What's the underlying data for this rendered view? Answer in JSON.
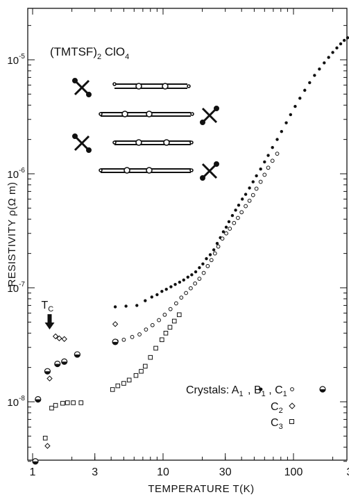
{
  "chart_data": {
    "type": "scatter",
    "title": "(TMTSF)",
    "title_sub": "2",
    "title_rest": " ClO",
    "title_sub2": "4",
    "xlabel": "TEMPERATURE  T(K)",
    "ylabel": "RESISTIVITY  ρ(Ω m)",
    "x_scale": "log",
    "y_scale": "log",
    "xlim": [
      1,
      320
    ],
    "ylim": [
      2.8e-09,
      3e-05
    ],
    "x_ticks": [
      {
        "v": 1,
        "label": "1"
      },
      {
        "v": 3,
        "label": "3"
      },
      {
        "v": 10,
        "label": "10"
      },
      {
        "v": 30,
        "label": "30"
      },
      {
        "v": 100,
        "label": "100"
      },
      {
        "v": 300,
        "label": "300"
      }
    ],
    "y_ticks": [
      {
        "v": 1e-08,
        "base": "10",
        "exp": "-8"
      },
      {
        "v": 1e-07,
        "base": "10",
        "exp": "-7"
      },
      {
        "v": 1e-06,
        "base": "10",
        "exp": "-6"
      },
      {
        "v": 1e-05,
        "base": "10",
        "exp": "-5"
      }
    ],
    "tc_label": "T",
    "tc_sub": "C",
    "tc_x": 1.35,
    "legend": {
      "line1": "Crystals: A",
      "a_sub": "1",
      "b_text": ", B",
      "b_sub": "1",
      "c_text": ", C",
      "c_sub": "1",
      "line2": "C",
      "line2_sub": "2",
      "line3": "C",
      "line3_sub": "3"
    },
    "series": [
      {
        "marker": "filled-circle",
        "points": [
          [
            4.3,
            6.8e-08
          ],
          [
            5.2,
            6.9e-08
          ],
          [
            6.3,
            7e-08
          ],
          [
            7.3,
            7.7e-08
          ],
          [
            8.2,
            8.3e-08
          ],
          [
            9.0,
            8.7e-08
          ],
          [
            9.8,
            9.3e-08
          ],
          [
            10.6,
            9.7e-08
          ],
          [
            11.5,
            1.02e-07
          ],
          [
            12.4,
            1.07e-07
          ],
          [
            13.4,
            1.12e-07
          ],
          [
            14.4,
            1.17e-07
          ],
          [
            15.5,
            1.24e-07
          ],
          [
            16.6,
            1.3e-07
          ],
          [
            17.8,
            1.38e-07
          ],
          [
            19.0,
            1.5e-07
          ],
          [
            20.2,
            1.62e-07
          ],
          [
            21.5,
            1.8e-07
          ],
          [
            23.0,
            1.95e-07
          ],
          [
            24.5,
            2.15e-07
          ],
          [
            26.0,
            2.45e-07
          ],
          [
            27.5,
            2.75e-07
          ],
          [
            29.0,
            3.1e-07
          ],
          [
            30.5,
            3.4e-07
          ],
          [
            32.0,
            3.8e-07
          ],
          [
            34.0,
            4.3e-07
          ],
          [
            36.0,
            4.8e-07
          ],
          [
            38.0,
            5.3e-07
          ],
          [
            40.5,
            6e-07
          ],
          [
            43.0,
            6.6e-07
          ],
          [
            46.0,
            7.5e-07
          ],
          [
            49.0,
            8.5e-07
          ],
          [
            52.0,
            9.6e-07
          ],
          [
            56.0,
            1.1e-06
          ],
          [
            60.0,
            1.27e-06
          ],
          [
            64.0,
            1.45e-06
          ],
          [
            69.0,
            1.7e-06
          ],
          [
            75.0,
            2e-06
          ],
          [
            81.0,
            2.35e-06
          ],
          [
            88.0,
            2.8e-06
          ],
          [
            95.0,
            3.3e-06
          ],
          [
            103.0,
            3.9e-06
          ],
          [
            112.0,
            4.6e-06
          ],
          [
            122.0,
            5.4e-06
          ],
          [
            133.0,
            6.3e-06
          ],
          [
            145.0,
            7.3e-06
          ],
          [
            158.0,
            8.3e-06
          ],
          [
            172.0,
            9.4e-06
          ],
          [
            186.0,
            1.05e-05
          ],
          [
            200.0,
            1.16e-05
          ],
          [
            215.0,
            1.27e-05
          ],
          [
            230.0,
            1.38e-05
          ],
          [
            245.0,
            1.48e-05
          ],
          [
            260.0,
            1.56e-05
          ],
          [
            275.0,
            1.64e-05
          ],
          [
            290.0,
            1.7e-05
          ]
        ]
      },
      {
        "marker": "open-circle",
        "points": [
          [
            4.4,
            3.4e-08
          ],
          [
            5.0,
            3.5e-08
          ],
          [
            5.8,
            3.7e-08
          ],
          [
            6.6,
            3.9e-08
          ],
          [
            7.4,
            4.3e-08
          ],
          [
            8.3,
            4.7e-08
          ],
          [
            9.3,
            5.2e-08
          ],
          [
            10.3,
            5.8e-08
          ],
          [
            11.4,
            6.5e-08
          ],
          [
            12.6,
            7.3e-08
          ],
          [
            13.8,
            8.2e-08
          ],
          [
            15.0,
            9e-08
          ],
          [
            16.3,
            9.9e-08
          ],
          [
            17.6,
            1.09e-07
          ],
          [
            19.0,
            1.2e-07
          ],
          [
            20.5,
            1.35e-07
          ],
          [
            22.0,
            1.55e-07
          ],
          [
            23.5,
            1.75e-07
          ],
          [
            25.0,
            2e-07
          ],
          [
            26.5,
            2.3e-07
          ],
          [
            28.5,
            2.7e-07
          ],
          [
            30.5,
            3e-07
          ],
          [
            32.5,
            3.3e-07
          ],
          [
            35.0,
            3.7e-07
          ],
          [
            37.5,
            4.1e-07
          ],
          [
            40.0,
            4.6e-07
          ],
          [
            43.0,
            5.2e-07
          ],
          [
            46.0,
            5.8e-07
          ],
          [
            49.0,
            6.5e-07
          ],
          [
            52.0,
            7.4e-07
          ],
          [
            56.0,
            8.5e-07
          ],
          [
            60.0,
            9.8e-07
          ],
          [
            64.0,
            1.13e-06
          ],
          [
            69.0,
            1.3e-06
          ],
          [
            75.0,
            1.5e-06
          ]
        ]
      },
      {
        "marker": "half-circle",
        "points": [
          [
            1.05,
            3e-09
          ],
          [
            1.1,
            1.05e-08
          ],
          [
            1.3,
            1.85e-08
          ],
          [
            1.55,
            2.15e-08
          ],
          [
            1.75,
            2.25e-08
          ],
          [
            2.2,
            2.6e-08
          ],
          [
            4.3,
            3.35e-08
          ]
        ]
      },
      {
        "marker": "open-diamond",
        "points": [
          [
            1.3,
            4.1e-09
          ],
          [
            1.35,
            1.6e-08
          ],
          [
            1.5,
            3.75e-08
          ],
          [
            1.6,
            3.6e-08
          ],
          [
            1.75,
            3.55e-08
          ],
          [
            4.3,
            4.8e-08
          ]
        ]
      },
      {
        "marker": "open-square",
        "points": [
          [
            1.25,
            4.8e-09
          ],
          [
            1.4,
            8.8e-09
          ],
          [
            1.5,
            9.3e-09
          ],
          [
            1.7,
            9.7e-09
          ],
          [
            1.85,
            9.8e-09
          ],
          [
            2.05,
            9.8e-09
          ],
          [
            2.35,
            9.8e-09
          ],
          [
            4.1,
            1.28e-08
          ],
          [
            4.5,
            1.38e-08
          ],
          [
            5.0,
            1.45e-08
          ],
          [
            5.5,
            1.55e-08
          ],
          [
            6.2,
            1.7e-08
          ],
          [
            6.8,
            1.85e-08
          ],
          [
            7.3,
            2.05e-08
          ],
          [
            8.0,
            2.45e-08
          ],
          [
            8.8,
            2.95e-08
          ],
          [
            9.8,
            3.5e-08
          ],
          [
            10.5,
            4e-08
          ],
          [
            11.3,
            4.5e-08
          ],
          [
            12.2,
            5.1e-08
          ],
          [
            13.3,
            5.8e-08
          ]
        ]
      }
    ]
  }
}
